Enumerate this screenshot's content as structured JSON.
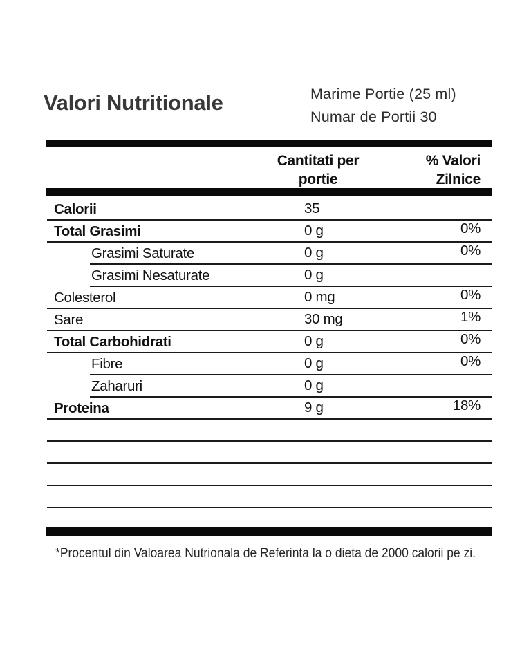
{
  "header": {
    "title": "Valori Nutritionale",
    "serving_size": "Marime Portie (25 ml)",
    "servings_per_container": "Numar de Portii 30"
  },
  "table": {
    "amount_header": "Cantitati per portie",
    "dv_header": "% Valori Zilnice",
    "rows": [
      {
        "label": "Calorii",
        "amount": "35",
        "dv": "",
        "bold": true,
        "indent": false
      },
      {
        "label": "Total Grasimi",
        "amount": "0 g",
        "dv": "0%",
        "bold": true,
        "indent": false
      },
      {
        "label": "Grasimi Saturate",
        "amount": "0 g",
        "dv": "0%",
        "bold": false,
        "indent": true
      },
      {
        "label": "Grasimi Nesaturate",
        "amount": "0 g",
        "dv": "",
        "bold": false,
        "indent": true
      },
      {
        "label": "Colesterol",
        "amount": "0 mg",
        "dv": "0%",
        "bold": false,
        "indent": false
      },
      {
        "label": "Sare",
        "amount": "30 mg",
        "dv": "1%",
        "bold": false,
        "indent": false
      },
      {
        "label": "Total Carbohidrati",
        "amount": "0 g",
        "dv": "0%",
        "bold": true,
        "indent": false
      },
      {
        "label": "Fibre",
        "amount": "0 g",
        "dv": "0%",
        "bold": false,
        "indent": true
      },
      {
        "label": "Zaharuri",
        "amount": "0 g",
        "dv": "",
        "bold": false,
        "indent": true
      },
      {
        "label": "Proteina",
        "amount": "9 g",
        "dv": "18%",
        "bold": true,
        "indent": false
      }
    ],
    "empty_row_count": 4
  },
  "footer": {
    "note": "*Procentul din Valoarea Nutrionala de Referinta la o dieta de 2000 calorii pe zi."
  },
  "colors": {
    "background": "#ffffff",
    "bar": "#0a0a0a",
    "rule": "#1a1a1a",
    "text": "#111111",
    "title": "#383838"
  }
}
